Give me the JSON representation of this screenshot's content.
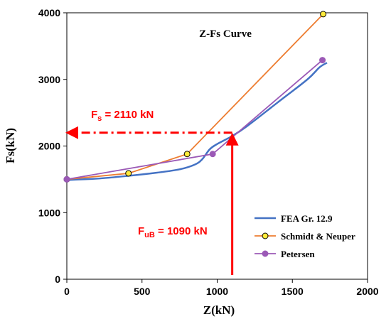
{
  "chart_data": {
    "type": "line",
    "title": "Z-Fs Curve",
    "xlabel": "Z(kN)",
    "ylabel": "Fs(kN)",
    "xlim": [
      0,
      2000
    ],
    "ylim": [
      0,
      4000
    ],
    "x_ticks": [
      "0",
      "500",
      "1000",
      "1500",
      "2000"
    ],
    "y_ticks": [
      "0",
      "1000",
      "2000",
      "3000",
      "4000"
    ],
    "grid": false,
    "legend_position": "lower-right",
    "series": [
      {
        "name": "FEA Gr. 12.9",
        "color": "#4472C4",
        "marker": "none",
        "x": [
          0,
          200,
          400,
          600,
          750,
          850,
          900,
          950,
          1000,
          1100,
          1200,
          1400,
          1600,
          1680,
          1730
        ],
        "y": [
          1490,
          1510,
          1550,
          1600,
          1650,
          1720,
          1800,
          1950,
          2030,
          2150,
          2300,
          2650,
          3000,
          3180,
          3250
        ]
      },
      {
        "name": "Schmidt & Neuper",
        "color": "#ED7D31",
        "marker": "circle-yellow",
        "x": [
          0,
          410,
          800,
          1705
        ],
        "y": [
          1500,
          1590,
          1880,
          3980
        ]
      },
      {
        "name": "Petersen",
        "color": "#9B59B6",
        "marker": "circle-purple",
        "x": [
          0,
          970,
          1700
        ],
        "y": [
          1500,
          1880,
          3290
        ]
      }
    ],
    "annotations": {
      "fs_label_main": "F",
      "fs_label_sub": "s",
      "fs_label_rest": " = 2110 kN",
      "fub_label_main": "F",
      "fub_label_sub": "uB",
      "fub_label_rest": " = 1090 kN",
      "fs_value": 2200,
      "fub_value": 1100,
      "color": "#FF0000"
    }
  }
}
